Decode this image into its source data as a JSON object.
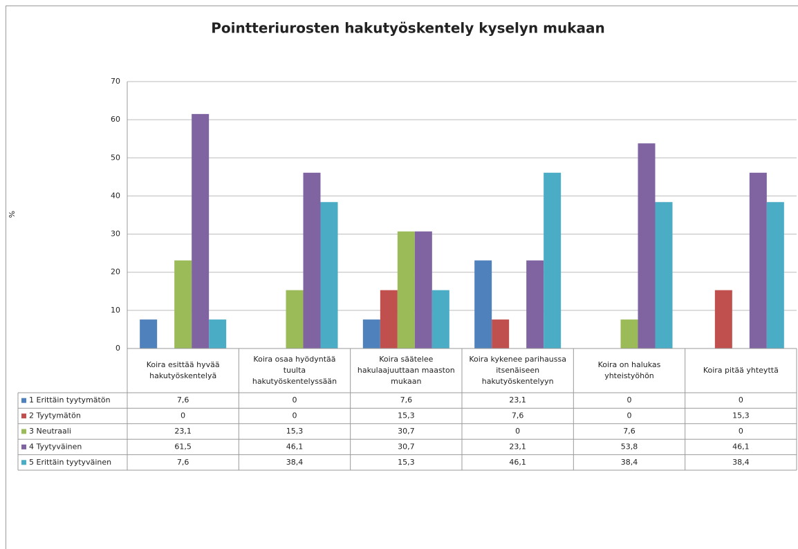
{
  "chart_data": {
    "type": "bar",
    "title": "Pointteriurosten hakutyöskentely kyselyn mukaan",
    "y_label": "%",
    "categories": [
      "Koira esittää hyvää hakutyöskentelyä",
      "Koira osaa hyödyntää tuulta hakutyöskentelyssään",
      "Koira säätelee hakulaajuuttaan maaston mukaan",
      "Koira kykenee parihaussa itsenäiseen hakutyöskentelyyn",
      "Koira on halukas yhteistyöhön",
      "Koira pitää yhteyttä"
    ],
    "series": [
      {
        "name": "1 Erittäin tyytymätön",
        "color": "#4f81bd",
        "values": [
          7.6,
          0,
          7.6,
          23.1,
          0,
          0
        ],
        "value_labels": [
          "7,6",
          "0",
          "7,6",
          "23,1",
          "0",
          "0"
        ]
      },
      {
        "name": "2 Tyytymätön",
        "color": "#c0504d",
        "values": [
          0,
          0,
          15.3,
          7.6,
          0,
          15.3
        ],
        "value_labels": [
          "0",
          "0",
          "15,3",
          "7,6",
          "0",
          "15,3"
        ]
      },
      {
        "name": "3 Neutraali",
        "color": "#9bbb59",
        "values": [
          23.1,
          15.3,
          30.7,
          0,
          7.6,
          0
        ],
        "value_labels": [
          "23,1",
          "15,3",
          "30,7",
          "0",
          "7,6",
          "0"
        ]
      },
      {
        "name": "4 Tyytyväinen",
        "color": "#8064a2",
        "values": [
          61.5,
          46.1,
          30.7,
          23.1,
          53.8,
          46.1
        ],
        "value_labels": [
          "61,5",
          "46,1",
          "30,7",
          "23,1",
          "53,8",
          "46,1"
        ]
      },
      {
        "name": "5 Erittäin tyytyväinen",
        "color": "#4bacc6",
        "values": [
          7.6,
          38.4,
          15.3,
          46.1,
          38.4,
          38.4
        ],
        "value_labels": [
          "7,6",
          "38,4",
          "15,3",
          "46,1",
          "38,4",
          "38,4"
        ]
      }
    ],
    "ylim": [
      0,
      70
    ],
    "yticks": [
      0,
      10,
      20,
      30,
      40,
      50,
      60,
      70
    ],
    "grid": true
  }
}
